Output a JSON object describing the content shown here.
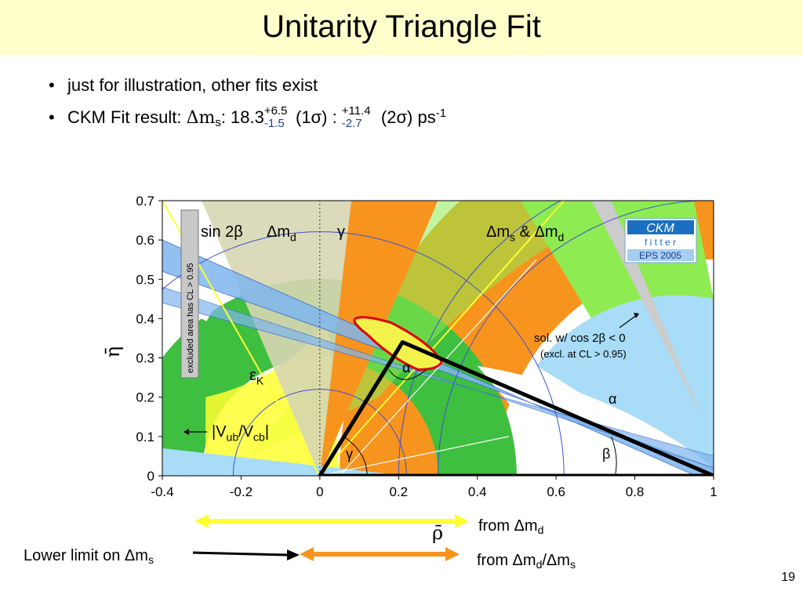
{
  "slide": {
    "title": "Unitarity Triangle Fit",
    "bullet1": "just for illustration, other fits exist",
    "bullet2": {
      "prefix": "CKM Fit result:  ",
      "dm": "Δm",
      "dm_sub": "s",
      "colon_value": ": 18.3",
      "sigma1_plus": "+6.5",
      "sigma1_minus": "-1.5",
      "sigma1_label": " (1σ)  : ",
      "sigma2_plus": "+11.4",
      "sigma2_minus": "-2.7",
      "sigma2_label": " (2σ)  ps",
      "unit_sup": "-1"
    },
    "page_number": "19"
  },
  "annotations": {
    "from_dmd": "from Δm",
    "from_dmd_sub": "d",
    "from_ratio": "from Δm",
    "from_ratio_sub1": "d",
    "from_ratio_mid": "/Δm",
    "from_ratio_sub2": "s",
    "lower_limit": "Lower limit on Δm",
    "lower_limit_sub": "s"
  },
  "chart_data": {
    "type": "scatter",
    "title": "",
    "xlabel": "ρ̄",
    "ylabel": "η̄",
    "xlim": [
      -0.4,
      1.0
    ],
    "ylim": [
      0,
      0.7
    ],
    "x_ticks": [
      "-0.4",
      "-0.2",
      "0",
      "0.2",
      "0.4",
      "0.6",
      "0.8",
      "1"
    ],
    "y_ticks": [
      "0",
      "0.1",
      "0.2",
      "0.3",
      "0.4",
      "0.5",
      "0.6",
      "0.7"
    ],
    "grid": false,
    "triangle": {
      "apex": [
        0.21,
        0.34
      ],
      "origin": [
        0,
        0
      ],
      "corner": [
        1,
        0
      ]
    },
    "labels": {
      "sin2b": "sin 2β",
      "dmd": "Δm",
      "dmd_sub": "d",
      "gamma": "γ",
      "dms_dmd": "Δm",
      "dms_dmd_sub1": "s",
      "dms_dmd_amp": " & Δm",
      "dms_dmd_sub2": "d",
      "excluded": "excluded area has CL > 0.95",
      "epsK": "ε",
      "epsK_sub": "K",
      "vub": "|V",
      "vub_sub1": "ub",
      "vub_mid": "/V",
      "vub_sub2": "cb",
      "vub_end": "|",
      "alpha_apex": "α",
      "alpha_right": "α",
      "beta": "β",
      "gamma_origin": "γ",
      "sol1": "sol. w/ cos 2β < 0",
      "sol2": "(excl. at CL > 0.95)"
    },
    "logo": {
      "line1": "CKM",
      "line2": "f i t t e r",
      "line3": "EPS 2005"
    },
    "colors": {
      "orange": "#f7941d",
      "green_dark": "#3fbf3f",
      "green_light": "#8eeb52",
      "blue_light": "#a8dcf7",
      "blue_band": "#7fb6ee",
      "tan": "#d7d6b2",
      "yellow": "#ffff33",
      "fit_region": "#f2f24a",
      "fit_border": "#e00000",
      "logo_blue": "#1b6fc0"
    }
  }
}
